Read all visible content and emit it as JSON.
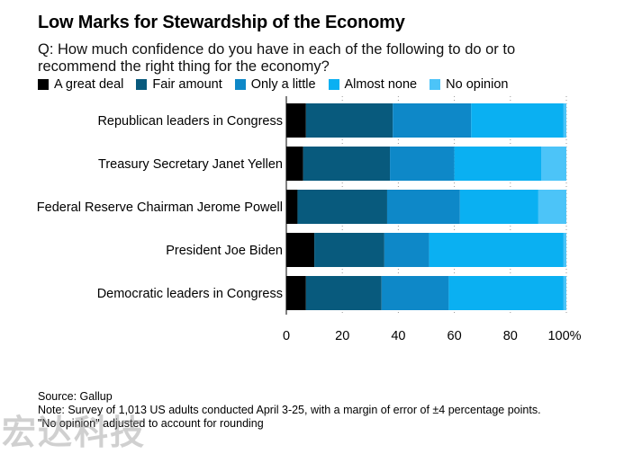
{
  "title": "Low Marks for Stewardship of the Economy",
  "subtitle": "Q: How much confidence do you have in each of the following to do or to recommend the right thing for the economy?",
  "footer": {
    "source": "Source: Gallup",
    "note1": "Note: Survey of 1,013 US adults conducted April 3-25, with a margin of error of ±4 percentage points.",
    "note2": "\"No opinion\" adjusted to account for rounding"
  },
  "watermark": "宏达科技",
  "chart_data": {
    "type": "bar",
    "orientation": "horizontal",
    "stacked": true,
    "title": "Low Marks for Stewardship of the Economy",
    "categories": [
      "Republican leaders in Congress",
      "Treasury Secretary Janet Yellen",
      "Federal Reserve Chairman Jerome Powell",
      "President Joe Biden",
      "Democratic leaders in Congress"
    ],
    "series": [
      {
        "name": "A great deal",
        "color": "#000000",
        "values": [
          7,
          6,
          4,
          10,
          7
        ]
      },
      {
        "name": "Fair amount",
        "color": "#085a7d",
        "values": [
          31,
          31,
          32,
          25,
          27
        ]
      },
      {
        "name": "Only a little",
        "color": "#0e88c8",
        "values": [
          28,
          23,
          26,
          16,
          24
        ]
      },
      {
        "name": "Almost none",
        "color": "#0ab0f2",
        "values": [
          33,
          31,
          28,
          48,
          41
        ]
      },
      {
        "name": "No opinion",
        "color": "#4cc4f8",
        "values": [
          1,
          9,
          10,
          1,
          1
        ]
      }
    ],
    "xlim": [
      0,
      100
    ],
    "xticks": [
      "0",
      "20",
      "40",
      "60",
      "80",
      "100%"
    ],
    "xtick_values": [
      0,
      20,
      40,
      60,
      80,
      100
    ],
    "grid": "vertical dotted",
    "legend_position": "top-left"
  }
}
